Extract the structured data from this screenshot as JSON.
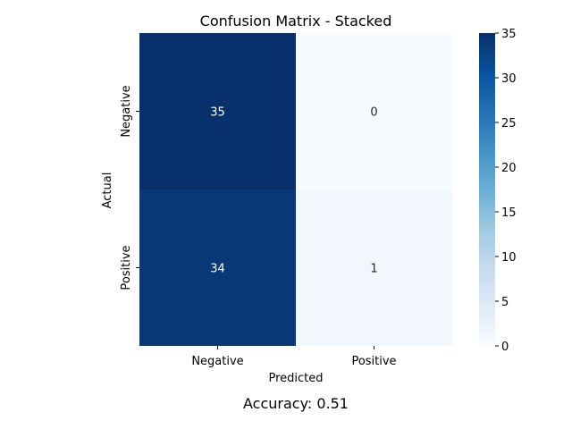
{
  "chart_data": {
    "type": "heatmap",
    "title": "Confusion Matrix - Stacked",
    "xlabel": "Predicted",
    "ylabel": "Actual",
    "x_categories": [
      "Negative",
      "Positive"
    ],
    "y_categories": [
      "Negative",
      "Positive"
    ],
    "matrix": [
      [
        35,
        0
      ],
      [
        34,
        1
      ]
    ],
    "value_labels": [
      [
        "35",
        "0"
      ],
      [
        "34",
        "1"
      ]
    ],
    "colorbar": {
      "min": 0,
      "max": 35,
      "ticks": [
        0,
        5,
        10,
        15,
        20,
        25,
        30,
        35
      ],
      "tick_labels": [
        "0",
        "5",
        "10",
        "15",
        "20",
        "25",
        "30",
        "35"
      ]
    },
    "colormap": "Blues",
    "footer": "Accuracy: 0.51"
  },
  "colors": {
    "blues_low": "#f7fbff",
    "blues_high": "#08306b"
  }
}
